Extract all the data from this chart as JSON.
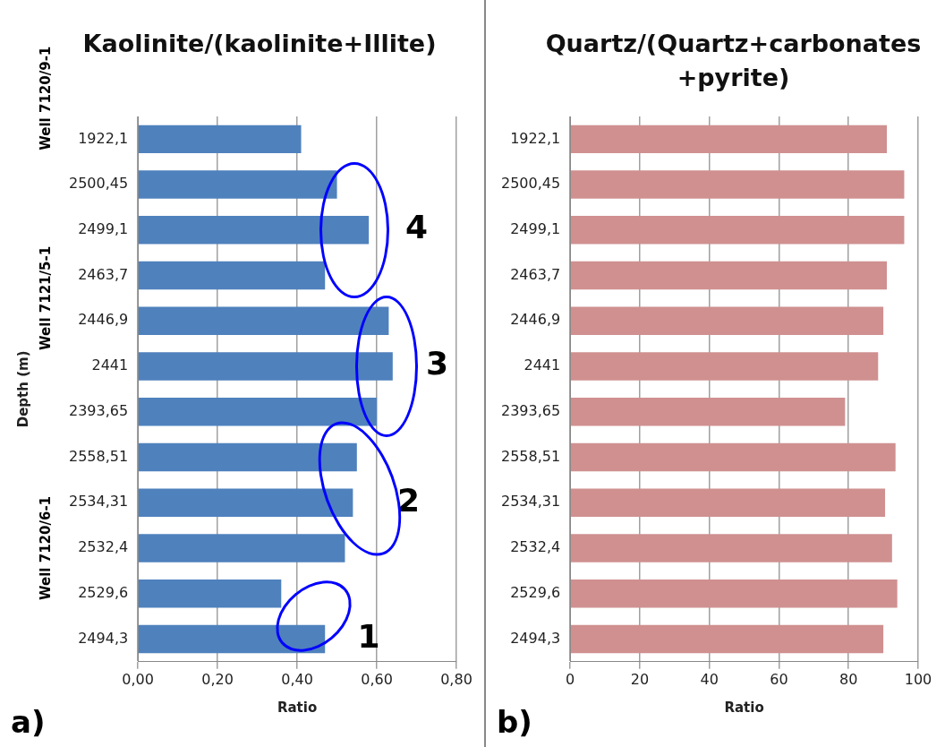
{
  "chart_data": [
    {
      "type": "bar",
      "orientation": "horizontal",
      "title": "Kaolinite/(kaolinite+Illite)",
      "xlabel": "Ratio",
      "ylabel": "Depth (m)",
      "categories": [
        "1922,1",
        "2500,45",
        "2499,1",
        "2463,7",
        "2446,9",
        "2441",
        "2393,65",
        "2558,51",
        "2534,31",
        "2532,4",
        "2529,6",
        "2494,3"
      ],
      "values": [
        0.41,
        0.5,
        0.58,
        0.47,
        0.63,
        0.64,
        0.6,
        0.55,
        0.54,
        0.52,
        0.36,
        0.47
      ],
      "color": "#4f81bd",
      "xlim": [
        0,
        0.8
      ],
      "xticks": [
        {
          "value": 0,
          "label": "0,00"
        },
        {
          "value": 0.2,
          "label": "0,20"
        },
        {
          "value": 0.4,
          "label": "0,40"
        },
        {
          "value": 0.6,
          "label": "0,60"
        },
        {
          "value": 0.8,
          "label": "0,80"
        }
      ],
      "grid": "x",
      "legend": false,
      "annotations": [
        "a)",
        "Well 7120/9-1",
        "Well 7121/5-1",
        "Well 7120/6-1",
        "4",
        "3",
        "2",
        "1"
      ]
    },
    {
      "type": "bar",
      "orientation": "horizontal",
      "title": "Quartz/(Quartz+carbonates+pyrite)",
      "xlabel": "Ratio",
      "categories": [
        "1922,1",
        "2500,45",
        "2499,1",
        "2463,7",
        "2446,9",
        "2441",
        "2393,65",
        "2558,51",
        "2534,31",
        "2532,4",
        "2529,6",
        "2494,3"
      ],
      "values": [
        91,
        96,
        96,
        91,
        90,
        88.5,
        79,
        93.5,
        90.5,
        92.5,
        94,
        90
      ],
      "color": "#d09090",
      "xlim": [
        0,
        100
      ],
      "xticks": [
        0,
        20,
        40,
        60,
        80,
        100
      ],
      "grid": "x",
      "legend": false,
      "annotations": [
        "b)"
      ]
    }
  ]
}
